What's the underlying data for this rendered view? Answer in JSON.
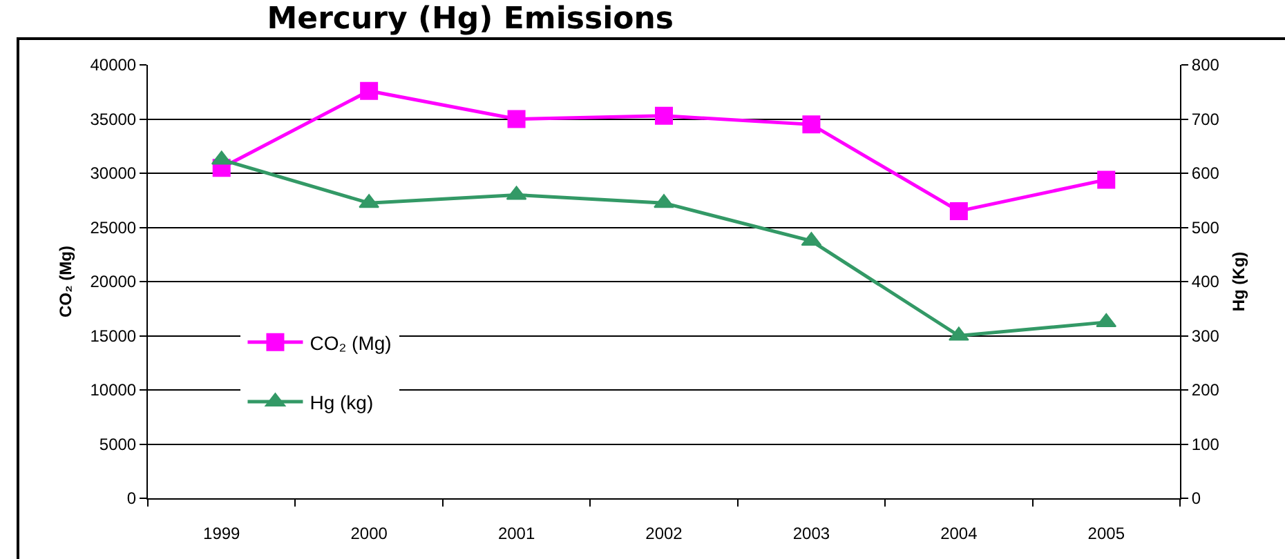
{
  "chart_data": {
    "type": "line",
    "title": "Mercury (Hg) Emissions",
    "ylabel": "CO₂ (Mg)",
    "y2label": "Hg (Kg)",
    "categories": [
      "1999",
      "2000",
      "2001",
      "2002",
      "2003",
      "2004",
      "2005"
    ],
    "series": [
      {
        "name": "CO₂ (Mg)",
        "color": "#ff00ff",
        "marker": "square",
        "values": [
          30500,
          37600,
          35000,
          35300,
          34500,
          26500,
          29400
        ]
      },
      {
        "name": "Hg (kg)",
        "color": "#339966",
        "marker": "triangle",
        "axis": "y2",
        "values": [
          625,
          545,
          560,
          545,
          475,
          300,
          325
        ]
      }
    ],
    "ylim": [
      0,
      40000
    ],
    "yticks": [
      0,
      5000,
      10000,
      15000,
      20000,
      25000,
      30000,
      35000,
      40000
    ],
    "y2lim": [
      0,
      800
    ],
    "y2ticks": [
      0,
      100,
      200,
      300,
      400,
      500,
      600,
      700,
      800
    ],
    "grid": "y",
    "legend": "bottom left",
    "line_style": "solid"
  }
}
